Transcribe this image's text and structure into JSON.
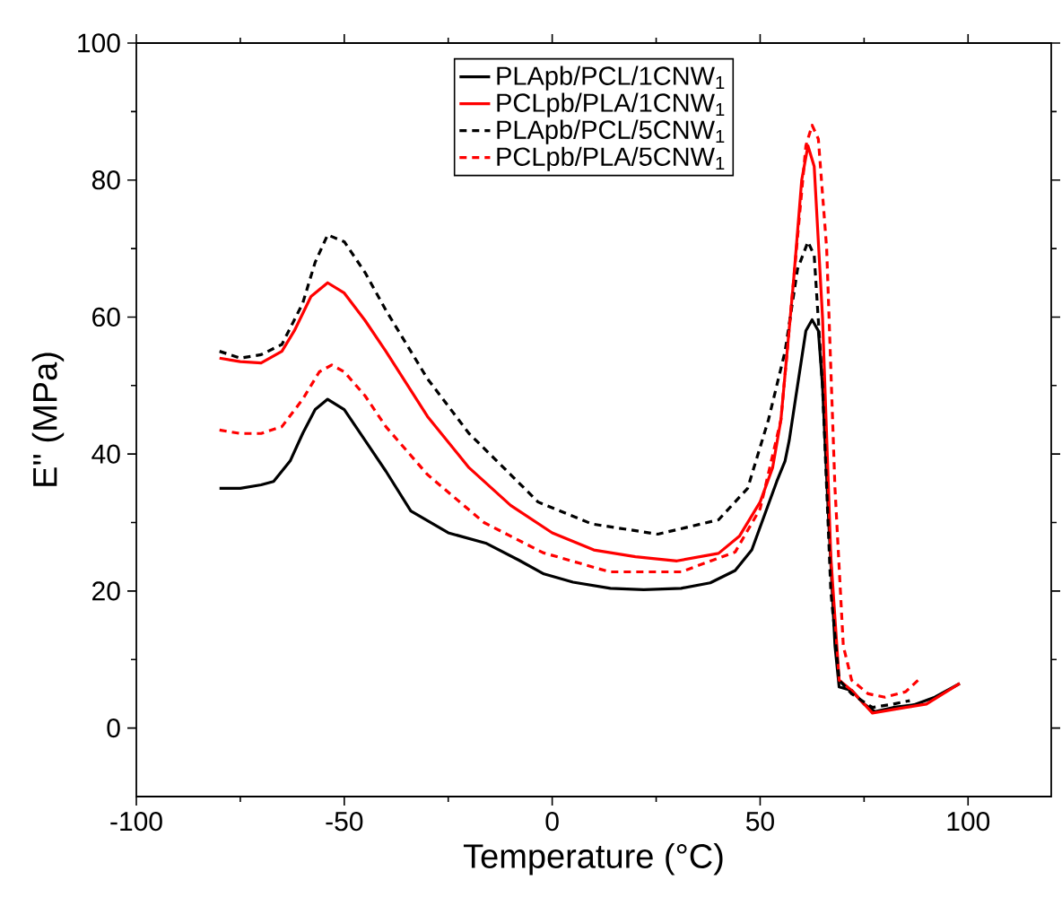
{
  "chart_data": {
    "type": "line",
    "xlabel": "Temperature (°C)",
    "ylabel": "E'' (MPa)",
    "xlim": [
      -100,
      120
    ],
    "xticks": [
      -100,
      -50,
      0,
      50,
      100
    ],
    "ylim": [
      -10,
      100
    ],
    "yticks": [
      0,
      20,
      40,
      60,
      80,
      100
    ],
    "legend": "top",
    "grid": false,
    "marker": "none",
    "series": [
      {
        "name": "PLApb/PCL/1CNW$_{1}$",
        "color": "#000000",
        "line_style": "solid",
        "x": [
          -80,
          -75,
          -70,
          -67,
          -63,
          -60,
          -57,
          -54,
          -50,
          -45,
          -40,
          -34,
          -25,
          -16,
          -8,
          -2,
          5,
          14,
          22,
          31,
          38,
          44,
          48,
          51,
          54,
          56,
          57,
          58.5,
          60,
          61,
          62.5,
          64,
          65,
          66.5,
          68,
          69,
          72,
          75,
          77.6,
          82,
          87,
          92,
          98
        ],
        "values": [
          35,
          35,
          35.5,
          36,
          39,
          43,
          46.5,
          48,
          46.5,
          42,
          37.5,
          31.7,
          28.5,
          27,
          24.5,
          22.5,
          21.3,
          20.4,
          20.2,
          20.4,
          21.2,
          23,
          26,
          31,
          36,
          39,
          42,
          48,
          54,
          58,
          59.6,
          58,
          50,
          30,
          12,
          6,
          5.5,
          3.5,
          2.4,
          3,
          3.4,
          4.5,
          6.5
        ]
      },
      {
        "name": "PCLpb/PLA/1CNW$_{1}$",
        "color": "#ff0000",
        "line_style": "solid",
        "x": [
          -80,
          -75,
          -70,
          -65,
          -62,
          -58,
          -54,
          -50,
          -45,
          -40,
          -30,
          -20,
          -10,
          0,
          10,
          20,
          30,
          40,
          45,
          50,
          53,
          55,
          58,
          60,
          61.5,
          63,
          65,
          67,
          69,
          72,
          77,
          85,
          90,
          98
        ],
        "values": [
          54,
          53.5,
          53.3,
          55,
          58,
          63,
          65,
          63.5,
          59.5,
          55,
          45.5,
          38,
          32.5,
          28.5,
          26,
          25,
          24.4,
          25.5,
          28,
          33,
          38,
          45,
          65,
          80,
          85,
          82,
          60,
          25,
          7,
          5.5,
          2.2,
          3,
          3.5,
          6.5
        ]
      },
      {
        "name": "PLApb/PCL/5CNW$_{1}$",
        "color": "#000000",
        "line_style": "dashed",
        "x": [
          -80,
          -75,
          -70,
          -65,
          -60,
          -57,
          -54,
          -50,
          -45,
          -40,
          -30,
          -20,
          -10,
          -3.4,
          9.5,
          25.4,
          40,
          47,
          52,
          56,
          59,
          61.5,
          63,
          65,
          67,
          69,
          72,
          77,
          82,
          86
        ],
        "values": [
          55,
          54,
          54.5,
          56,
          62,
          68,
          72,
          71,
          66.5,
          61,
          51,
          43,
          37,
          33,
          29.8,
          28.3,
          30.4,
          35,
          45,
          55,
          67,
          71,
          69,
          50,
          20,
          7,
          5,
          3,
          3.5,
          4
        ]
      },
      {
        "name": "PCLpb/PLA/5CNW$_{1}$",
        "color": "#ff0000",
        "line_style": "dashed",
        "x": [
          -80,
          -75,
          -70,
          -65,
          -60,
          -56,
          -53,
          -50,
          -45,
          -40,
          -30,
          -16.4,
          -2.2,
          13.8,
          31,
          44,
          50,
          55,
          58,
          61,
          62.5,
          64,
          66,
          68,
          70,
          72,
          76,
          80,
          85,
          88
        ],
        "values": [
          43.5,
          43,
          43,
          44,
          48,
          52,
          53,
          52,
          48.5,
          44,
          37,
          30,
          25.6,
          22.8,
          22.8,
          25.7,
          32,
          45,
          65,
          85,
          88,
          86,
          70,
          35,
          12,
          7,
          5,
          4.5,
          5.3,
          7
        ]
      }
    ]
  }
}
